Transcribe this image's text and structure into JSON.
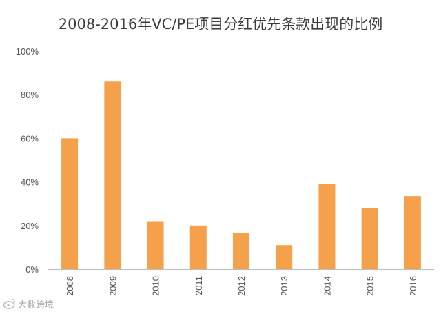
{
  "chart_data": {
    "type": "bar",
    "title": "2008-2016年VC/PE项目分红优先条款出现的比例",
    "xlabel": "",
    "ylabel": "",
    "categories": [
      "2008",
      "2009",
      "2010",
      "2011",
      "2012",
      "2013",
      "2014",
      "2015",
      "2016"
    ],
    "values": [
      60,
      86,
      22,
      20,
      16.5,
      11,
      39,
      28,
      33.5
    ],
    "ylim": [
      0,
      100
    ],
    "yticks": [
      0,
      20,
      40,
      60,
      80,
      100
    ],
    "ytick_labels": [
      "0%",
      "20%",
      "40%",
      "60%",
      "80%",
      "100%"
    ],
    "grid": false,
    "legend": "none",
    "bar_color": "#f5a04a"
  },
  "watermark": {
    "icon": "weibo-icon",
    "text": "大数跨境"
  }
}
